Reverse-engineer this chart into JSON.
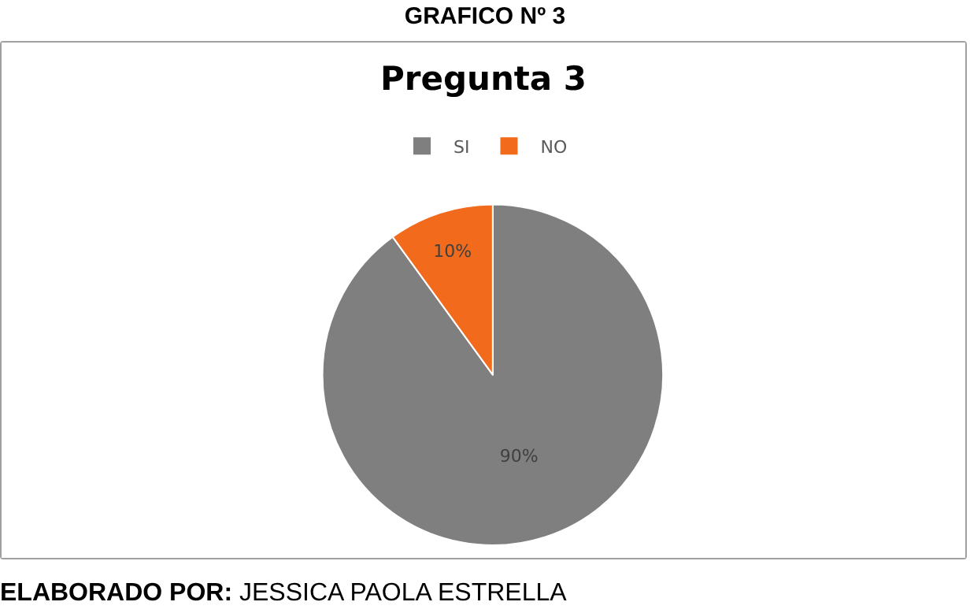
{
  "chart_data": {
    "type": "pie",
    "title": "Pregunta 3",
    "subtitle": "GRAFICO Nº 3",
    "categories": [
      "SI",
      "NO"
    ],
    "values": [
      90,
      10
    ],
    "colors": [
      "#7f7f7f",
      "#f26b1d"
    ],
    "value_labels": [
      "90%",
      "10%"
    ],
    "legend": "top",
    "annotations": [
      "ELABORADO POR: JESSICA PAOLA ESTRELLA"
    ]
  }
}
